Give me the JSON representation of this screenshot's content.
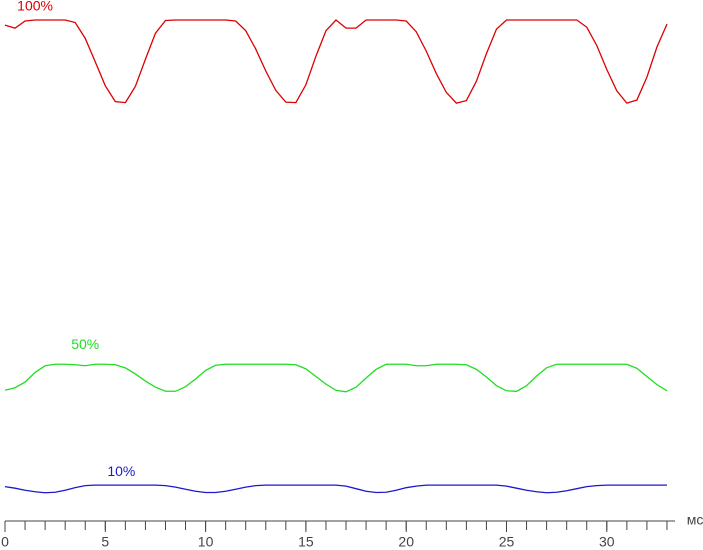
{
  "chart_data": {
    "type": "line",
    "x_label": "мс",
    "x": [
      0,
      0.5,
      1,
      1.5,
      2,
      2.5,
      3,
      3.5,
      4,
      4.5,
      5,
      5.5,
      6,
      6.5,
      7,
      7.5,
      8,
      8.5,
      9,
      9.5,
      10,
      10.5,
      11,
      11.5,
      12,
      12.5,
      13,
      13.5,
      14,
      14.5,
      15,
      15.5,
      16,
      16.5,
      17,
      17.5,
      18,
      18.5,
      19,
      19.5,
      20,
      20.5,
      21,
      21.5,
      22,
      22.5,
      23,
      23.5,
      24,
      24.5,
      25,
      25.5,
      26,
      26.5,
      27,
      27.5,
      28,
      28.5,
      29,
      29.5,
      30,
      30.5,
      31,
      31.5,
      32,
      32.5,
      33
    ],
    "series": [
      {
        "name": "100%",
        "color": "#dd0000",
        "values": [
          99.0,
          98.4,
          99.8,
          100,
          100,
          100,
          100,
          99.5,
          96.4,
          91.8,
          87.1,
          84.0,
          83.8,
          87.0,
          92.3,
          97.4,
          99.9,
          100,
          100,
          100,
          100,
          100,
          100,
          99.8,
          97.9,
          94.3,
          90.0,
          86.2,
          83.9,
          83.8,
          87.3,
          92.9,
          97.9,
          100,
          98.4,
          98.4,
          100,
          100,
          100,
          100,
          99.8,
          97.7,
          93.9,
          89.5,
          85.8,
          83.7,
          84.2,
          88.0,
          93.4,
          98.2,
          100,
          100,
          100,
          100,
          100,
          100,
          100,
          100,
          98.6,
          95.0,
          90.3,
          86.1,
          83.7,
          84.3,
          88.8,
          94.7,
          99.2
        ]
      },
      {
        "name": "50%",
        "color": "#22dd22",
        "values": [
          27.4,
          27.9,
          29.0,
          30.9,
          32.2,
          32.5,
          32.5,
          32.4,
          32.2,
          32.5,
          32.5,
          32.4,
          31.8,
          30.6,
          29.2,
          28.0,
          27.2,
          27.2,
          28.1,
          29.6,
          31.3,
          32.3,
          32.5,
          32.5,
          32.5,
          32.5,
          32.5,
          32.5,
          32.5,
          32.4,
          31.6,
          30.1,
          28.6,
          27.4,
          27.1,
          28.0,
          29.8,
          31.5,
          32.5,
          32.5,
          32.5,
          32.2,
          32.2,
          32.5,
          32.5,
          32.5,
          32.4,
          31.5,
          30.0,
          28.3,
          27.3,
          27.2,
          28.3,
          30.2,
          31.8,
          32.5,
          32.5,
          32.5,
          32.5,
          32.5,
          32.5,
          32.5,
          32.5,
          31.7,
          30.1,
          28.5,
          27.3
        ]
      },
      {
        "name": "10%",
        "color": "#1a1acc",
        "values": [
          8.5,
          8.2,
          7.8,
          7.5,
          7.3,
          7.4,
          7.8,
          8.3,
          8.7,
          8.8,
          8.8,
          8.8,
          8.8,
          8.8,
          8.8,
          8.8,
          8.7,
          8.4,
          8.0,
          7.6,
          7.35,
          7.35,
          7.6,
          8.0,
          8.4,
          8.7,
          8.8,
          8.8,
          8.8,
          8.8,
          8.8,
          8.8,
          8.8,
          8.8,
          8.6,
          8.1,
          7.6,
          7.35,
          7.4,
          7.8,
          8.3,
          8.6,
          8.8,
          8.8,
          8.8,
          8.8,
          8.8,
          8.8,
          8.8,
          8.8,
          8.6,
          8.2,
          7.8,
          7.5,
          7.3,
          7.4,
          7.7,
          8.1,
          8.5,
          8.7,
          8.8,
          8.8,
          8.8,
          8.8,
          8.8,
          8.8,
          8.8
        ]
      }
    ],
    "xlim": [
      0,
      33.4
    ],
    "ylim": [
      0,
      100
    ],
    "xticks": [
      0,
      5,
      10,
      15,
      20,
      25,
      30
    ],
    "xminorticks": [
      0,
      1,
      2,
      3,
      4,
      5,
      6,
      7,
      8,
      9,
      10,
      11,
      12,
      13,
      14,
      15,
      16,
      17,
      18,
      19,
      20,
      21,
      22,
      23,
      24,
      25,
      26,
      27,
      28,
      29,
      30,
      31,
      32,
      33
    ]
  }
}
